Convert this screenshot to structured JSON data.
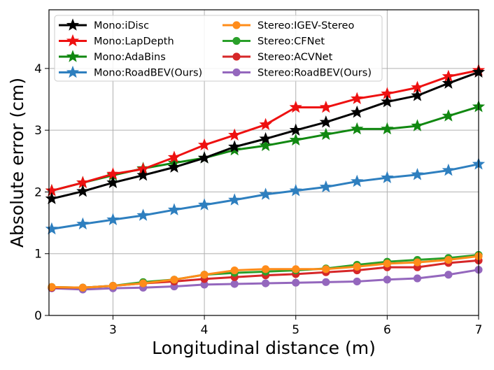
{
  "chart_data": {
    "type": "line",
    "title": "",
    "xlabel": "Longitudinal distance (m)",
    "ylabel": "Absolute error (cm)",
    "xlim": [
      2.3,
      7.0
    ],
    "ylim": [
      0,
      4.95
    ],
    "xticks": [
      3,
      4,
      5,
      6,
      7
    ],
    "yticks": [
      0,
      1,
      2,
      3,
      4
    ],
    "grid": true,
    "legend_position": "top-left",
    "x": [
      2.33,
      2.67,
      3.0,
      3.33,
      3.67,
      4.0,
      4.33,
      4.67,
      5.0,
      5.33,
      5.67,
      6.0,
      6.33,
      6.67,
      7.0
    ],
    "series": [
      {
        "name": "Mono:iDisc",
        "color": "#000000",
        "marker": "star",
        "values": [
          1.89,
          2.01,
          2.15,
          2.27,
          2.4,
          2.55,
          2.73,
          2.86,
          3.0,
          3.13,
          3.29,
          3.46,
          3.56,
          3.76,
          3.94
        ]
      },
      {
        "name": "Mono:LapDepth",
        "color": "#ee1111",
        "marker": "star",
        "values": [
          2.02,
          2.15,
          2.29,
          2.37,
          2.56,
          2.76,
          2.92,
          3.09,
          3.37,
          3.37,
          3.51,
          3.59,
          3.69,
          3.87,
          3.97
        ]
      },
      {
        "name": "Mono:AdaBins",
        "color": "#118811",
        "marker": "star",
        "values": [
          2.02,
          2.15,
          2.27,
          2.38,
          2.47,
          2.55,
          2.68,
          2.75,
          2.84,
          2.93,
          3.02,
          3.02,
          3.07,
          3.23,
          3.38
        ]
      },
      {
        "name": "Mono:RoadBEV(Ours)",
        "color": "#2e7fbf",
        "marker": "star",
        "values": [
          1.4,
          1.48,
          1.55,
          1.62,
          1.71,
          1.79,
          1.87,
          1.96,
          2.02,
          2.08,
          2.17,
          2.23,
          2.28,
          2.35,
          2.45
        ]
      },
      {
        "name": "Stereo:IGEV-Stereo",
        "color": "#ff8c1a",
        "marker": "circle",
        "values": [
          0.46,
          0.45,
          0.48,
          0.52,
          0.58,
          0.66,
          0.73,
          0.75,
          0.75,
          0.75,
          0.79,
          0.84,
          0.86,
          0.9,
          0.96
        ]
      },
      {
        "name": "Stereo:CFNet",
        "color": "#2aa02a",
        "marker": "circle",
        "values": [
          0.46,
          0.45,
          0.48,
          0.54,
          0.58,
          0.66,
          0.69,
          0.71,
          0.73,
          0.76,
          0.82,
          0.87,
          0.9,
          0.93,
          0.98
        ]
      },
      {
        "name": "Stereo:ACVNet",
        "color": "#d62728",
        "marker": "circle",
        "values": [
          0.45,
          0.45,
          0.48,
          0.52,
          0.55,
          0.59,
          0.62,
          0.65,
          0.67,
          0.7,
          0.73,
          0.78,
          0.78,
          0.85,
          0.89
        ]
      },
      {
        "name": "Stereo:RoadBEV(Ours)",
        "color": "#9467bd",
        "marker": "circle",
        "values": [
          0.44,
          0.42,
          0.44,
          0.45,
          0.47,
          0.5,
          0.51,
          0.52,
          0.53,
          0.54,
          0.55,
          0.58,
          0.6,
          0.66,
          0.74
        ]
      }
    ]
  }
}
